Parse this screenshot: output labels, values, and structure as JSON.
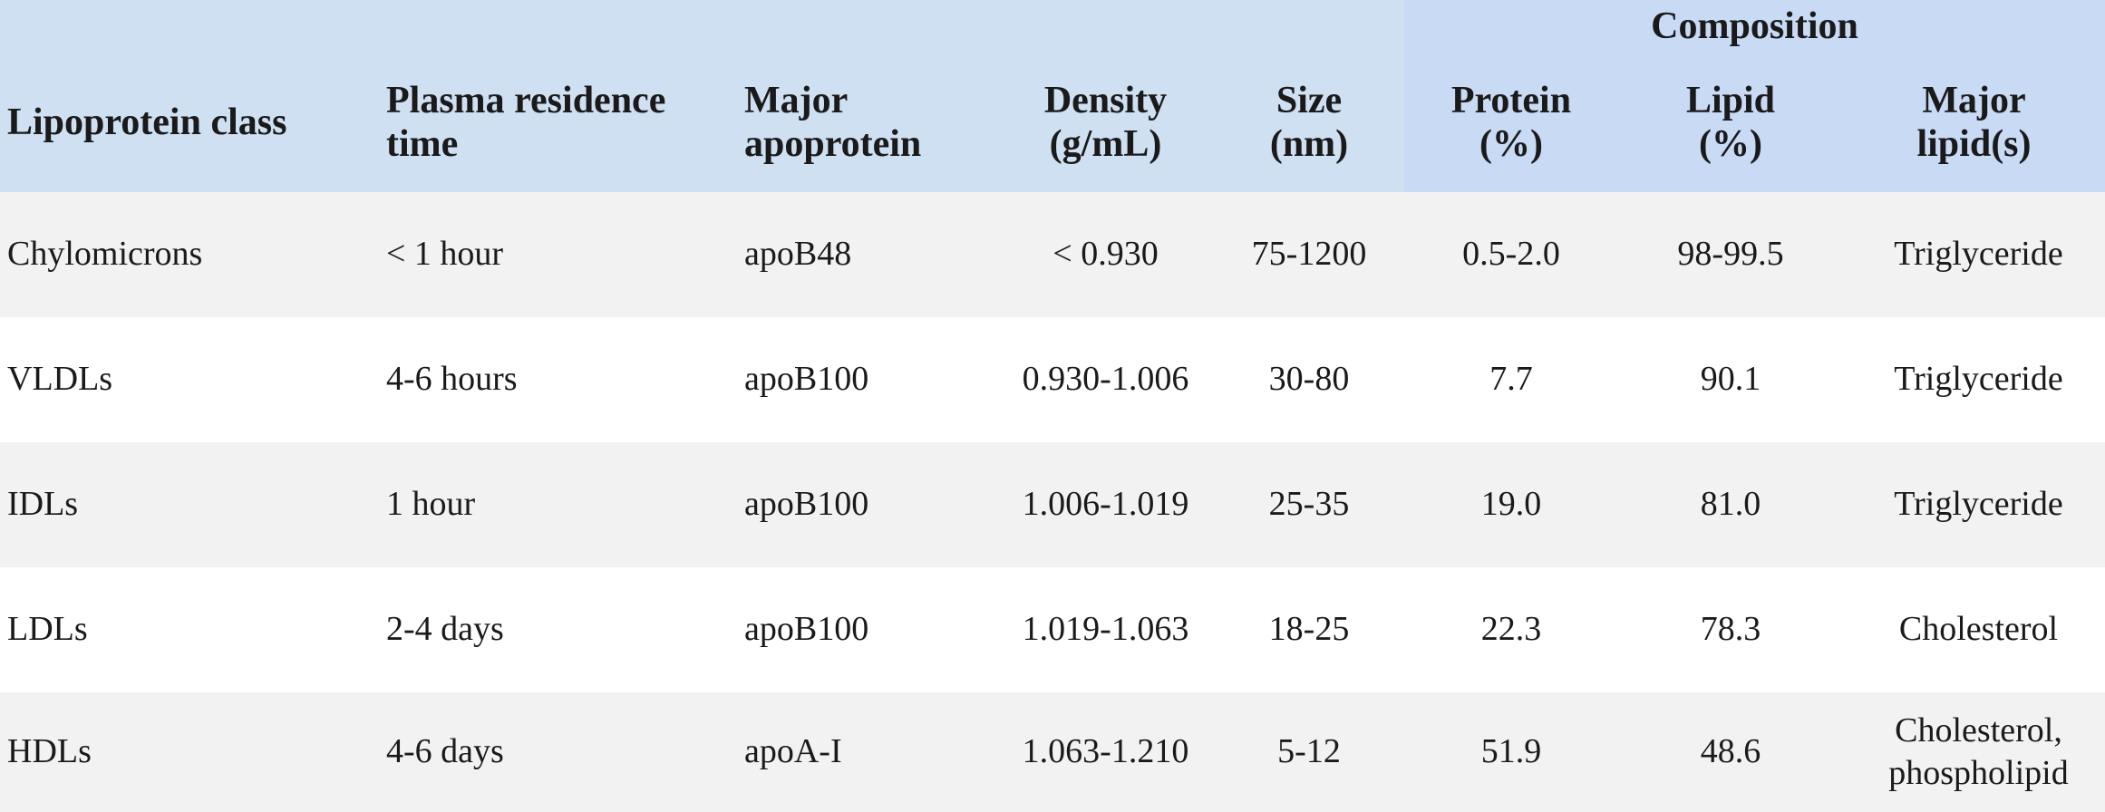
{
  "header": {
    "group": "Composition"
  },
  "table": {
    "columns": [
      "Lipoprotein class",
      "Plasma residence time",
      "Major apoprotein",
      "Density (g/mL)",
      "Size (nm)",
      "Protein (%)",
      "Lipid (%)",
      "Major lipid(s)"
    ],
    "rows": [
      [
        "Chylomicrons",
        "< 1 hour",
        "apoB48",
        "< 0.930",
        "75-1200",
        "0.5-2.0",
        "98-99.5",
        "Triglyceride"
      ],
      [
        "VLDLs",
        "4-6 hours",
        "apoB100",
        "0.930-1.006",
        "30-80",
        "7.7",
        "90.1",
        "Triglyceride"
      ],
      [
        "IDLs",
        "1 hour",
        "apoB100",
        "1.006-1.019",
        "25-35",
        "19.0",
        "81.0",
        "Triglyceride"
      ],
      [
        "LDLs",
        "2-4 days",
        "apoB100",
        "1.019-1.063",
        "18-25",
        "22.3",
        "78.3",
        "Cholesterol"
      ],
      [
        "HDLs",
        "4-6 days",
        "apoA-I",
        "1.063-1.210",
        "5-12",
        "51.9",
        "48.6",
        "Cholesterol, phospholipid"
      ]
    ]
  }
}
